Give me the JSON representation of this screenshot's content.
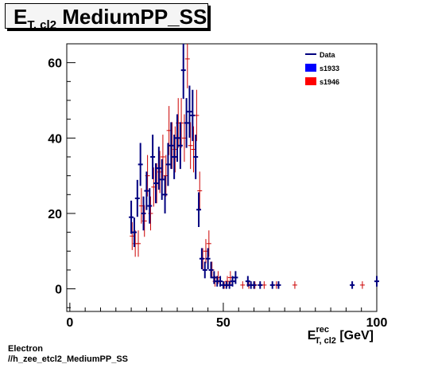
{
  "title": {
    "main": "E",
    "sub": "T, cl2",
    "rest": " MediumPP_SS"
  },
  "footer": {
    "line1": "Electron",
    "line2": "//h_zee_etcl2_MediumPP_SS"
  },
  "chart_data": {
    "type": "scatter",
    "xlim": [
      -1,
      100
    ],
    "ylim": [
      -6,
      65
    ],
    "xticks": [
      0,
      50,
      100
    ],
    "yticks": [
      0,
      20,
      40,
      60
    ],
    "xlabel": {
      "main": "E",
      "sup": "rec",
      "sub": "T, cl2",
      "unit": " [GeV]"
    },
    "ylabel": "",
    "legend": {
      "position": "top-right",
      "entries": [
        {
          "label": "Data",
          "style": "line",
          "color": "#00007f"
        },
        {
          "label": "s1933",
          "style": "box",
          "color": "#0000ff"
        },
        {
          "label": "s1946",
          "style": "box",
          "color": "#ff0000"
        }
      ]
    },
    "colors": {
      "data": "#00007f",
      "s1946": "#cc0000"
    },
    "series": [
      {
        "name": "Data",
        "x": [
          20,
          21,
          22,
          23,
          24,
          25,
          26,
          27,
          28,
          29,
          30,
          31,
          32,
          33,
          34,
          35,
          36,
          37,
          38,
          39,
          40,
          41,
          42,
          43,
          44,
          45,
          46,
          47,
          48,
          49,
          50,
          51,
          52,
          53,
          54,
          58,
          59,
          60,
          62,
          66,
          68,
          92,
          100
        ],
        "y": [
          19,
          15,
          24,
          33,
          20,
          26,
          22,
          35,
          28,
          32,
          29,
          25,
          33,
          38,
          35,
          40,
          38,
          58,
          44,
          47,
          46,
          35,
          21,
          8,
          5,
          8,
          5,
          3,
          2,
          2,
          1,
          1,
          1,
          2,
          3,
          2,
          1,
          1,
          1,
          1,
          1,
          1,
          2
        ],
        "yerr": [
          4.4,
          3.9,
          4.9,
          5.7,
          4.5,
          5.1,
          4.7,
          5.9,
          5.3,
          5.7,
          5.4,
          5,
          5.7,
          6.2,
          5.9,
          6.3,
          6.2,
          7.6,
          6.6,
          6.9,
          6.8,
          5.9,
          4.6,
          2.8,
          2.2,
          2.8,
          2.2,
          1.7,
          1.4,
          1.4,
          1,
          1,
          1,
          1.4,
          1.7,
          1.4,
          1,
          1,
          1,
          1,
          1,
          1,
          1.4
        ]
      },
      {
        "name": "s1946",
        "x": [
          20,
          21,
          22,
          23,
          24,
          25,
          26,
          27,
          28,
          29,
          30,
          31,
          32,
          33,
          34,
          35,
          36,
          37,
          38,
          39,
          40,
          41,
          42,
          43,
          44,
          45,
          46,
          47,
          48,
          50,
          51,
          52,
          56,
          58,
          60,
          63,
          67,
          73,
          95
        ],
        "y": [
          14,
          12,
          12,
          22,
          18,
          30,
          20,
          27,
          28,
          31,
          35,
          30,
          42,
          38,
          37,
          44,
          44,
          40,
          61,
          38,
          37,
          46,
          26,
          8,
          10,
          12,
          5,
          2,
          3,
          1,
          2,
          3,
          1,
          1,
          1,
          1,
          1,
          1,
          1
        ],
        "yerr": [
          3.7,
          3.5,
          3.5,
          4.7,
          4.2,
          5.5,
          4.5,
          5.2,
          5.3,
          5.6,
          5.9,
          5.5,
          6.5,
          6.2,
          6.1,
          6.6,
          6.6,
          6.3,
          7.8,
          6.2,
          6.1,
          6.8,
          5.1,
          2.8,
          3.2,
          3.5,
          2.2,
          1.4,
          1.7,
          1,
          1.4,
          1.7,
          1,
          1,
          1,
          1,
          1,
          1,
          1
        ]
      }
    ]
  }
}
